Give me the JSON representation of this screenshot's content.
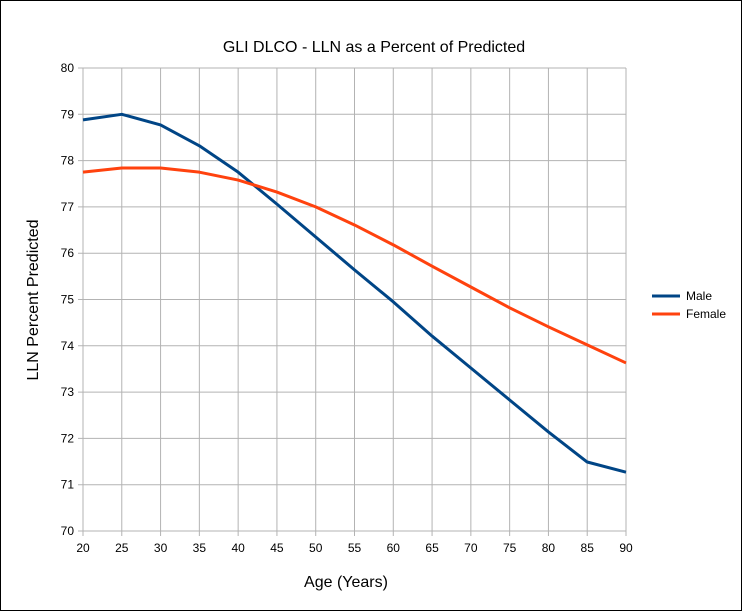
{
  "chart_data": {
    "type": "line",
    "title": "GLI DLCO - LLN as a Percent of Predicted",
    "xlabel": "Age (Years)",
    "ylabel": "LLN Percent Predicted",
    "x": [
      20,
      25,
      30,
      35,
      40,
      45,
      50,
      55,
      60,
      65,
      70,
      75,
      80,
      85,
      90
    ],
    "xlim": [
      20,
      90
    ],
    "ylim": [
      70,
      80
    ],
    "yticks": [
      70,
      71,
      72,
      73,
      74,
      75,
      76,
      77,
      78,
      79,
      80
    ],
    "grid": true,
    "legend_position": "right",
    "series": [
      {
        "name": "Male",
        "color": "#004586",
        "values": [
          78.88,
          79.0,
          78.77,
          78.32,
          77.75,
          77.06,
          76.35,
          75.64,
          74.95,
          74.21,
          73.52,
          72.83,
          72.14,
          71.49,
          71.27
        ]
      },
      {
        "name": "Female",
        "color": "#ff420e",
        "values": [
          77.75,
          77.84,
          77.84,
          77.75,
          77.58,
          77.32,
          77.0,
          76.61,
          76.18,
          75.72,
          75.27,
          74.82,
          74.41,
          74.02,
          73.63
        ]
      }
    ]
  }
}
